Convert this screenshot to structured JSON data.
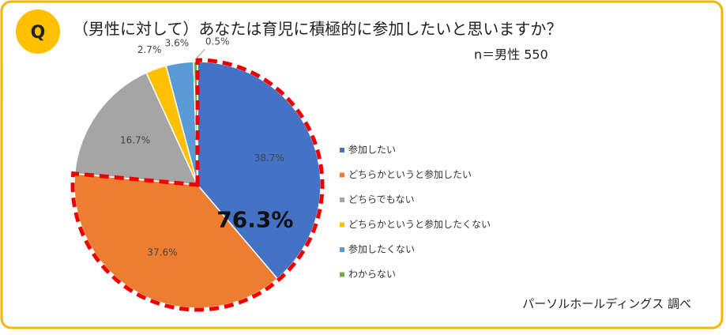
{
  "badge": "Q",
  "chart_data": {
    "type": "pie",
    "title": "（男性に対して）あなたは育児に積極的に参加したいと思いますか？",
    "subtitle": "n＝男性 550",
    "categories": [
      "参加したい",
      "どちらかというと参加したい",
      "どちらでもない",
      "どちらかというと参加したくない",
      "参加したくない",
      "わからない"
    ],
    "values": [
      38.7,
      37.6,
      16.7,
      2.7,
      3.6,
      0.5
    ],
    "value_labels": [
      "38.7%",
      "37.6%",
      "16.7%",
      "2.7%",
      "3.6%",
      "0.5%"
    ],
    "colors": [
      "#4472c4",
      "#ed7d31",
      "#a5a5a5",
      "#ffc000",
      "#5b9bd5",
      "#70ad47"
    ],
    "annotation": "76.3%",
    "source": "パーソルホールディングス 調べ"
  }
}
